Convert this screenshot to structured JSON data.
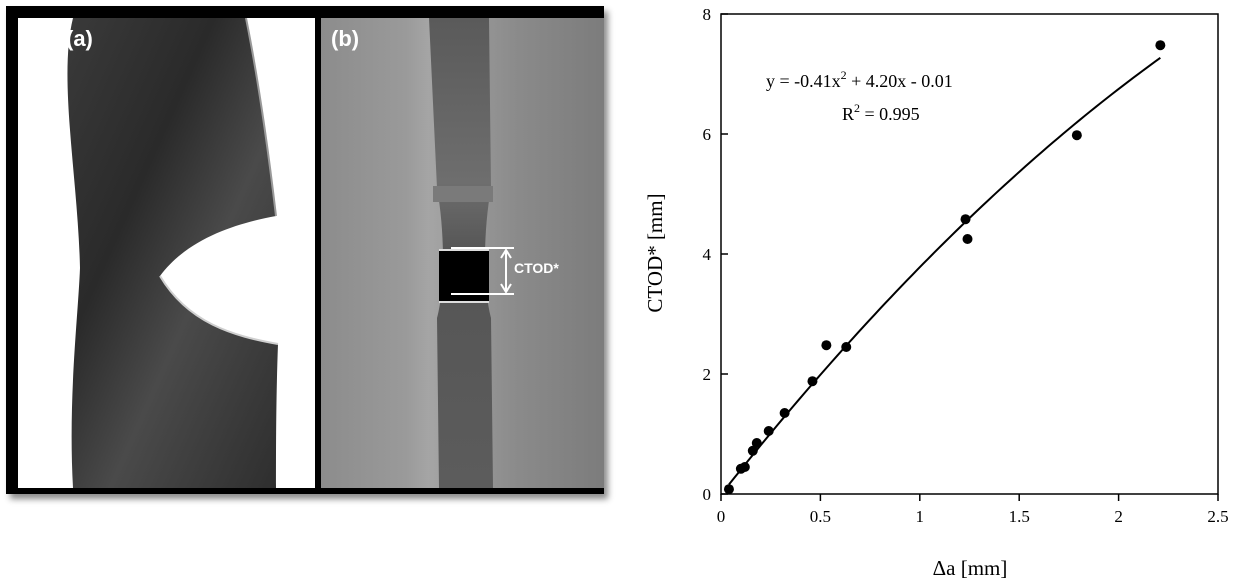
{
  "figure": {
    "panel_a_label": "(a)",
    "panel_b_label": "(b)",
    "ctod_label": "CTOD*"
  },
  "chart_data": {
    "type": "scatter",
    "xlabel": "Δa [mm]",
    "ylabel": "CTOD* [mm]",
    "xlim": [
      0,
      2.5
    ],
    "ylim": [
      0,
      8
    ],
    "x_ticks": [
      0,
      0.5,
      1,
      1.5,
      2,
      2.5
    ],
    "x_tick_labels": [
      "0",
      "0.5",
      "1",
      "1.5",
      "2",
      "2.5"
    ],
    "y_ticks": [
      0,
      2,
      4,
      6,
      8
    ],
    "y_tick_labels": [
      "0",
      "2",
      "4",
      "6",
      "8"
    ],
    "grid": false,
    "points": [
      {
        "x": 0.04,
        "y": 0.08
      },
      {
        "x": 0.1,
        "y": 0.42
      },
      {
        "x": 0.12,
        "y": 0.45
      },
      {
        "x": 0.16,
        "y": 0.72
      },
      {
        "x": 0.18,
        "y": 0.85
      },
      {
        "x": 0.24,
        "y": 1.05
      },
      {
        "x": 0.32,
        "y": 1.35
      },
      {
        "x": 0.46,
        "y": 1.88
      },
      {
        "x": 0.53,
        "y": 2.48
      },
      {
        "x": 0.63,
        "y": 2.45
      },
      {
        "x": 1.23,
        "y": 4.58
      },
      {
        "x": 1.24,
        "y": 4.25
      },
      {
        "x": 1.79,
        "y": 5.98
      },
      {
        "x": 2.21,
        "y": 7.48
      }
    ],
    "fit": {
      "a": -0.41,
      "b": 4.2,
      "c": -0.01,
      "x_range": [
        0.04,
        2.21
      ],
      "equation_parts": [
        "y = -0.41x",
        "2",
        " + 4.20x - 0.01"
      ],
      "r2_parts": [
        "R",
        "2",
        " = 0.995"
      ]
    }
  }
}
